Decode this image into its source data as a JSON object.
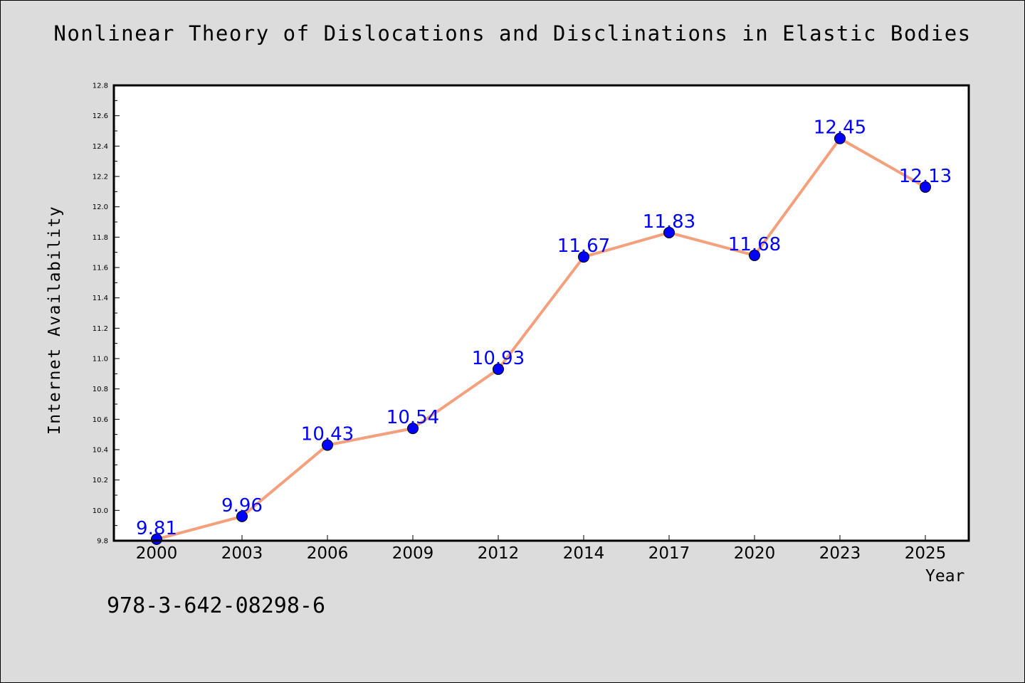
{
  "page": {
    "footer_text": "978-3-642-08298-6"
  },
  "colors": {
    "background": "#dcdcdc",
    "plot_background": "#ffffff",
    "line": "#f4a07c",
    "marker": "#0000ff",
    "data_label": "#0000ff"
  },
  "chart_data": {
    "type": "line",
    "title": "Nonlinear Theory of Dislocations and Disclinations in Elastic Bodies",
    "xlabel": "Year",
    "ylabel": "Internet Availability",
    "categories": [
      "2000",
      "2003",
      "2006",
      "2009",
      "2012",
      "2014",
      "2017",
      "2020",
      "2023",
      "2025"
    ],
    "series": [
      {
        "values": [
          9.81,
          9.96,
          10.43,
          10.54,
          10.93,
          11.67,
          11.83,
          11.68,
          12.45,
          12.13
        ],
        "labels": [
          "9.81",
          "9.96",
          "10.43",
          "10.54",
          "10.93",
          "11.67",
          "11.83",
          "11.68",
          "12.45",
          "12.13"
        ]
      }
    ],
    "ylim": [
      9.8,
      12.8
    ],
    "yticks": [
      "9.8",
      "10.0",
      "10.2",
      "10.4",
      "10.6",
      "10.8",
      "11.0",
      "11.2",
      "11.4",
      "11.6",
      "11.8",
      "12.0",
      "12.2",
      "12.4",
      "12.6",
      "12.8"
    ],
    "grid": false,
    "legend": "none",
    "markers": "circle"
  }
}
